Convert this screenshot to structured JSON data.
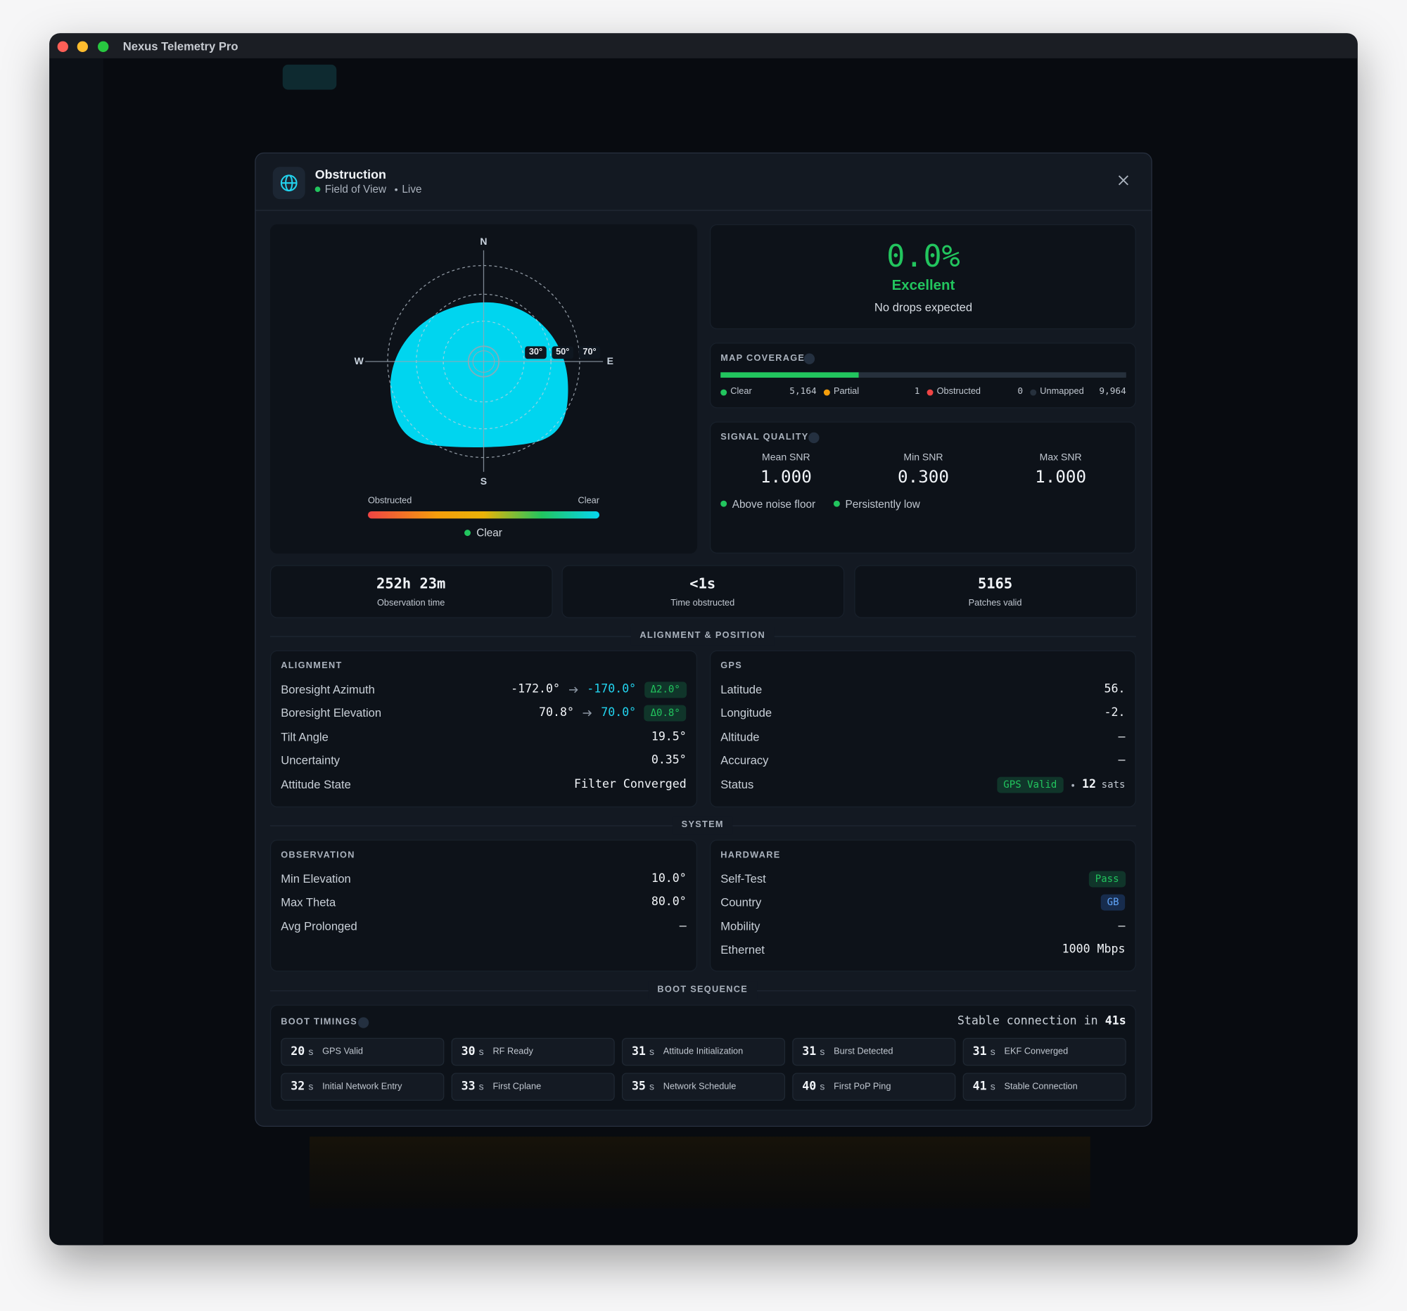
{
  "window": {
    "title": "Nexus Telemetry Pro"
  },
  "dialog": {
    "title": "Obstruction",
    "subtitle": "Field of View",
    "status": "Live"
  },
  "sky_plot": {
    "north": "N",
    "east": "E",
    "south": "S",
    "west": "W",
    "rings": [
      "30°",
      "50°",
      "70°"
    ],
    "scale_min": "Obstructed",
    "scale_max": "Clear",
    "state": "Clear"
  },
  "summary": {
    "value": "0.0%",
    "rating": "Excellent",
    "note": "No drops expected"
  },
  "map_coverage": {
    "title": "MAP COVERAGE",
    "items": [
      {
        "label": "Clear",
        "value": 5164,
        "value_label": "5,164",
        "color": "#22c55e"
      },
      {
        "label": "Partial",
        "value": 1,
        "color": "#f59e0b"
      },
      {
        "label": "Obstructed",
        "value": 0,
        "color": "#ef4444"
      },
      {
        "label": "Unmapped",
        "value": 9964,
        "value_label": "9,964",
        "color": "#26303c"
      }
    ]
  },
  "signal_quality": {
    "title": "SIGNAL QUALITY",
    "metrics": [
      {
        "label": "Mean SNR",
        "value": "1.000"
      },
      {
        "label": "Min SNR",
        "value": "0.300"
      },
      {
        "label": "Max SNR",
        "value": "1.000"
      }
    ],
    "indicators": [
      {
        "label": "Above noise floor",
        "color": "#22c55e"
      },
      {
        "label": "Persistently low",
        "color": "#22c55e"
      }
    ]
  },
  "stats": [
    {
      "value": "252h 23m",
      "label": "Observation time"
    },
    {
      "value": "<1s",
      "label": "Time obstructed"
    },
    {
      "value": "5165",
      "label": "Patches valid"
    }
  ],
  "sections": {
    "alignment_position": "ALIGNMENT & POSITION",
    "system": "SYSTEM",
    "boot_sequence": "BOOT SEQUENCE"
  },
  "alignment": {
    "title": "ALIGNMENT",
    "rows": [
      {
        "label": "Boresight Azimuth",
        "value": "-172.0°",
        "target": "-170.0°",
        "delta": "Δ2.0°"
      },
      {
        "label": "Boresight Elevation",
        "value": "70.8°",
        "target": "70.0°",
        "delta": "Δ0.8°"
      },
      {
        "label": "Tilt Angle",
        "value": "19.5°"
      },
      {
        "label": "Uncertainty",
        "value": "0.35°"
      },
      {
        "label": "Attitude State",
        "value": "Filter Converged"
      }
    ]
  },
  "gps": {
    "title": "GPS",
    "rows": [
      {
        "label": "Latitude",
        "value": "56."
      },
      {
        "label": "Longitude",
        "value": "-2."
      },
      {
        "label": "Altitude",
        "value": "—"
      },
      {
        "label": "Accuracy",
        "value": "—"
      },
      {
        "label": "Status",
        "badge": "GPS Valid",
        "tone": "green",
        "count": "12",
        "unit": "sats"
      }
    ]
  },
  "observation": {
    "title": "OBSERVATION",
    "rows": [
      {
        "label": "Min Elevation",
        "value": "10.0°"
      },
      {
        "label": "Max Theta",
        "value": "80.0°"
      },
      {
        "label": "Avg Prolonged",
        "value": "—"
      }
    ]
  },
  "hardware": {
    "title": "HARDWARE",
    "rows": [
      {
        "label": "Self-Test",
        "badge": "Pass",
        "tone": "green"
      },
      {
        "label": "Country",
        "badge": "GB",
        "tone": "blue"
      },
      {
        "label": "Mobility",
        "value": "—"
      },
      {
        "label": "Ethernet",
        "value": "1000 Mbps"
      }
    ]
  },
  "boot": {
    "title": "BOOT TIMINGS",
    "summary": "Stable connection in",
    "summary_value": "41s",
    "unit": "s",
    "items": [
      {
        "time": "20",
        "label": "GPS Valid"
      },
      {
        "time": "30",
        "label": "RF Ready"
      },
      {
        "time": "31",
        "label": "Attitude Initialization"
      },
      {
        "time": "31",
        "label": "Burst Detected"
      },
      {
        "time": "31",
        "label": "EKF Converged"
      },
      {
        "time": "32",
        "label": "Initial Network Entry"
      },
      {
        "time": "33",
        "label": "First Cplane"
      },
      {
        "time": "35",
        "label": "Network Schedule"
      },
      {
        "time": "40",
        "label": "First PoP Ping"
      },
      {
        "time": "41",
        "label": "Stable Connection"
      }
    ]
  }
}
